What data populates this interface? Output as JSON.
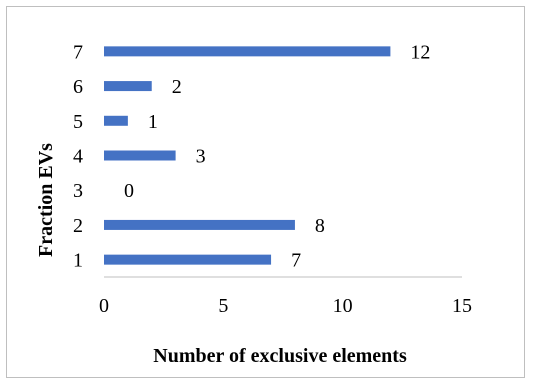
{
  "chart_data": {
    "type": "bar",
    "orientation": "horizontal",
    "categories": [
      "1",
      "2",
      "3",
      "4",
      "5",
      "6",
      "7"
    ],
    "values": [
      7,
      8,
      0,
      3,
      1,
      2,
      12
    ],
    "xlabel": "Number of exclusive elements",
    "ylabel": "Fraction EVs",
    "xlim": [
      0,
      15
    ],
    "xticks": [
      "0",
      "5",
      "10",
      "15"
    ],
    "grid": false,
    "legend": "none",
    "bar_color": "#4472c4"
  }
}
